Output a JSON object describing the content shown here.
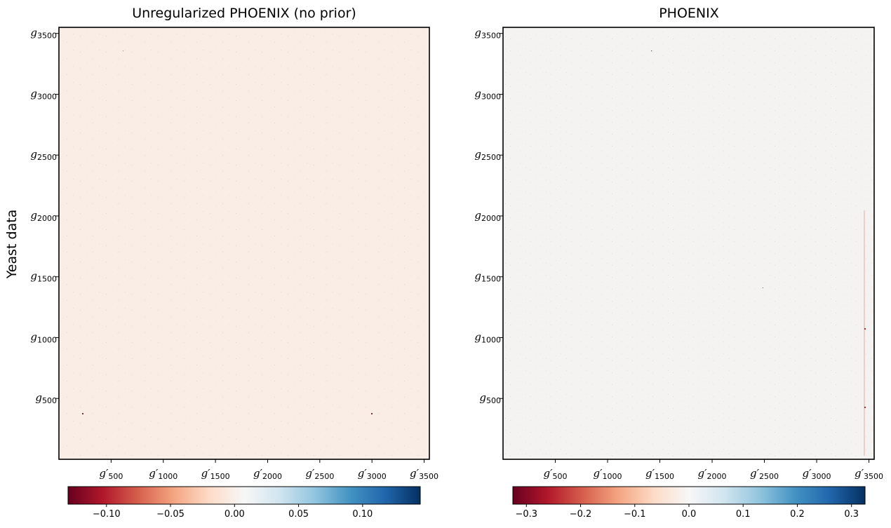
{
  "figure": {
    "ylabel": "Yeast data"
  },
  "chart_data": [
    {
      "type": "heatmap",
      "title": "Unregularized PHOENIX (no prior)",
      "xlabel": "",
      "ylabel": "Yeast data",
      "x_tick_values": [
        500,
        1000,
        1500,
        2000,
        2500,
        3000,
        3500
      ],
      "x_ticks": [
        {
          "base": "g′",
          "sub": "500"
        },
        {
          "base": "g′",
          "sub": "1000"
        },
        {
          "base": "g′",
          "sub": "1500"
        },
        {
          "base": "g′",
          "sub": "2000"
        },
        {
          "base": "g′",
          "sub": "2500"
        },
        {
          "base": "g′",
          "sub": "3000"
        },
        {
          "base": "g′",
          "sub": "3500"
        }
      ],
      "y_tick_values": [
        500,
        1000,
        1500,
        2000,
        2500,
        3000,
        3500
      ],
      "y_ticks": [
        {
          "base": "g",
          "sub": "500"
        },
        {
          "base": "g",
          "sub": "1000"
        },
        {
          "base": "g",
          "sub": "1500"
        },
        {
          "base": "g",
          "sub": "2000"
        },
        {
          "base": "g",
          "sub": "2500"
        },
        {
          "base": "g",
          "sub": "3000"
        },
        {
          "base": "g",
          "sub": "3500"
        }
      ],
      "xlim": [
        0,
        3550
      ],
      "ylim": [
        0,
        3550
      ],
      "colormap": "RdBu",
      "cbar_range": [
        -0.13,
        0.145
      ],
      "cbar_tick_values": [
        -0.1,
        -0.05,
        0.0,
        0.05,
        0.1
      ],
      "cbar_tick_labels": [
        "−0.10",
        "−0.05",
        "0.00",
        "0.05",
        "0.10"
      ],
      "background_value": -0.005
    },
    {
      "type": "heatmap",
      "title": "PHOENIX",
      "xlabel": "",
      "ylabel": "",
      "x_tick_values": [
        500,
        1000,
        1500,
        2000,
        2500,
        3000,
        3500
      ],
      "x_ticks": [
        {
          "base": "g′",
          "sub": "500"
        },
        {
          "base": "g′",
          "sub": "1000"
        },
        {
          "base": "g′",
          "sub": "1500"
        },
        {
          "base": "g′",
          "sub": "2000"
        },
        {
          "base": "g′",
          "sub": "2500"
        },
        {
          "base": "g′",
          "sub": "3000"
        },
        {
          "base": "g′",
          "sub": "3500"
        }
      ],
      "y_tick_values": [
        500,
        1000,
        1500,
        2000,
        2500,
        3000,
        3500
      ],
      "y_ticks": [
        {
          "base": "g",
          "sub": "500"
        },
        {
          "base": "g",
          "sub": "1000"
        },
        {
          "base": "g",
          "sub": "1500"
        },
        {
          "base": "g",
          "sub": "2000"
        },
        {
          "base": "g",
          "sub": "2500"
        },
        {
          "base": "g",
          "sub": "3000"
        },
        {
          "base": "g",
          "sub": "3500"
        }
      ],
      "xlim": [
        0,
        3550
      ],
      "ylim": [
        0,
        3550
      ],
      "colormap": "RdBu",
      "cbar_range": [
        -0.325,
        0.325
      ],
      "cbar_tick_values": [
        -0.3,
        -0.2,
        -0.1,
        0.0,
        0.1,
        0.2,
        0.3
      ],
      "cbar_tick_labels": [
        "−0.3",
        "−0.2",
        "−0.1",
        "0.0",
        "0.1",
        "0.2",
        "0.3"
      ],
      "background_value": -0.004
    }
  ],
  "colors": {
    "rdbu_stops": [
      "#67001f",
      "#b2182b",
      "#d6604d",
      "#f4a582",
      "#fddbc7",
      "#f7f7f7",
      "#d1e5f0",
      "#92c5de",
      "#4393c3",
      "#2166ac",
      "#053061"
    ],
    "axes": "#000000",
    "background": "#ffffff"
  }
}
